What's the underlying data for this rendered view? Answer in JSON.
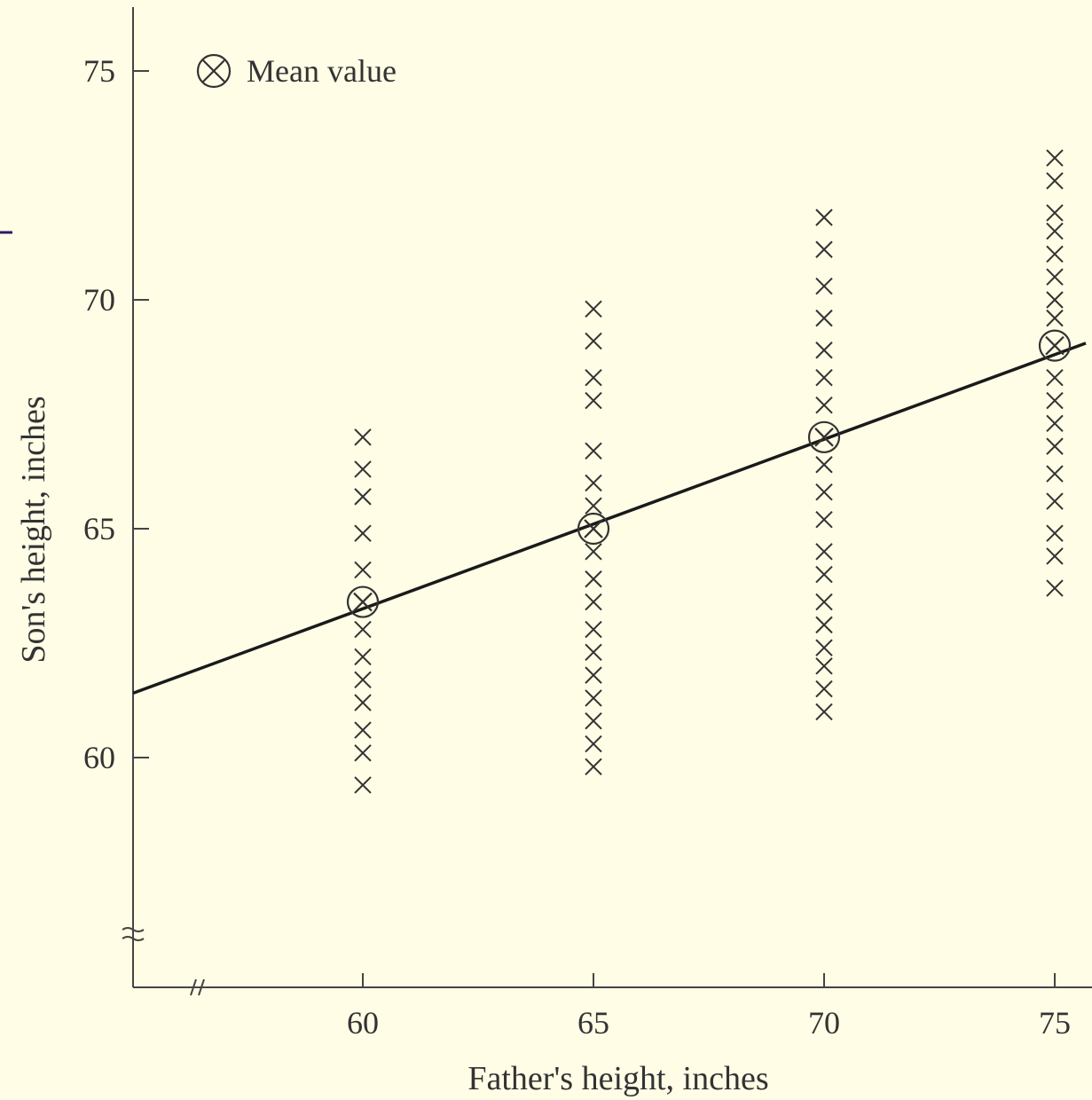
{
  "chart_data": {
    "type": "scatter",
    "xlabel": "Father's height, inches",
    "ylabel": "Son's height, inches",
    "x_ticks": [
      60,
      65,
      70,
      75
    ],
    "y_ticks": [
      60,
      65,
      70,
      75
    ],
    "x_tick_labels": [
      "60",
      "65",
      "70",
      "75"
    ],
    "y_tick_labels": [
      "60",
      "65",
      "70",
      "75"
    ],
    "xlim": [
      55,
      75.8
    ],
    "ylim": [
      55,
      76.4
    ],
    "axis_breaks": {
      "x": true,
      "y": true
    },
    "grid": false,
    "legend": {
      "position": "top-left",
      "label": "Mean value",
      "marker": "circled-x"
    },
    "observations": [
      {
        "x": 60,
        "y": [
          59.4,
          60.1,
          60.6,
          61.2,
          61.7,
          62.2,
          62.8,
          63.4,
          64.1,
          64.9,
          65.7,
          66.3,
          67.0
        ]
      },
      {
        "x": 65,
        "y": [
          59.8,
          60.3,
          60.8,
          61.3,
          61.8,
          62.3,
          62.8,
          63.4,
          63.9,
          64.5,
          65.0,
          65.5,
          66.0,
          66.7,
          67.8,
          68.3,
          69.1,
          69.8
        ]
      },
      {
        "x": 70,
        "y": [
          61.0,
          61.5,
          62.0,
          62.4,
          62.9,
          63.4,
          64.0,
          64.5,
          65.2,
          65.8,
          66.4,
          67.0,
          67.7,
          68.3,
          68.9,
          69.6,
          70.3,
          71.1,
          71.8
        ]
      },
      {
        "x": 75,
        "y": [
          63.7,
          64.4,
          64.9,
          65.6,
          66.2,
          66.8,
          67.3,
          67.8,
          68.3,
          69.0,
          69.6,
          70.0,
          70.5,
          71.0,
          71.5,
          71.9,
          72.6,
          73.1
        ]
      }
    ],
    "means": [
      {
        "x": 60,
        "y": 63.4
      },
      {
        "x": 65,
        "y": 65.0
      },
      {
        "x": 70,
        "y": 67.0
      },
      {
        "x": 75,
        "y": 69.0
      }
    ],
    "regression_line": {
      "from": {
        "x": 55,
        "y": 61.4
      },
      "to": {
        "x": 75.8,
        "y": 69.1
      }
    }
  }
}
